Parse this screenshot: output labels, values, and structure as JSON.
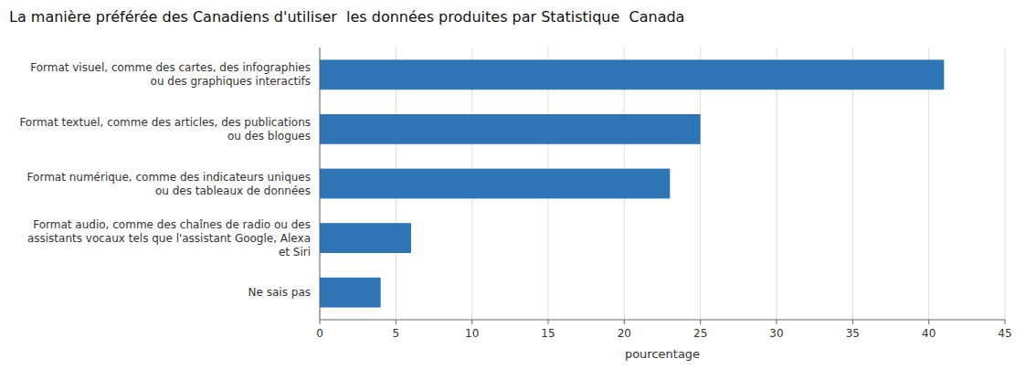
{
  "chart_data": {
    "type": "bar",
    "orientation": "horizontal",
    "title": "La manière préférée des Canadiens d'utiliser  les données produites par Statistique  Canada",
    "categories": [
      "Ne sais pas",
      "Format audio, comme des chaînes de radio ou des\nassistants vocaux tels que l'assistant Google, Alexa\net Siri",
      "Format numérique, comme des indicateurs uniques\nou des tableaux de données",
      "Format textuel, comme des articles, des publications\nou des blogues",
      "Format visuel, comme des cartes, des infographies\nou des graphiques interactifs"
    ],
    "values": [
      4,
      6,
      23,
      25,
      41
    ],
    "color": "#2e75b6",
    "xlabel": "pourcentage",
    "xlim": [
      0,
      45
    ],
    "xticks": [
      0,
      5,
      10,
      15,
      20,
      25,
      30,
      35,
      40,
      45
    ],
    "grid": true
  }
}
